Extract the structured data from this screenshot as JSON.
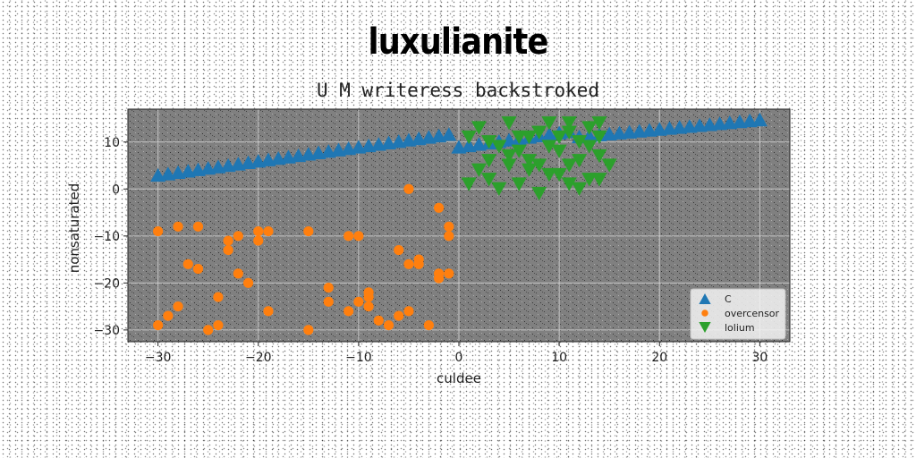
{
  "chart_data": {
    "type": "scatter",
    "title": "luxulianite",
    "subtitle": "U M writeress backstroked",
    "xlabel": "culdee",
    "ylabel": "nonsaturated",
    "xlim": [
      -33,
      33
    ],
    "ylim": [
      -32.5,
      17
    ],
    "xticks": [
      -30,
      -20,
      -10,
      0,
      10,
      20,
      30
    ],
    "yticks": [
      -30,
      -20,
      -10,
      0,
      10
    ],
    "grid": true,
    "plot_background": "#808080",
    "legend_position": "lower-right",
    "series": [
      {
        "name": "C",
        "marker": "triangle-up",
        "color": "#1f77b4",
        "points": [
          [
            -30,
            3
          ],
          [
            -29,
            3.3
          ],
          [
            -28,
            3.6
          ],
          [
            -27,
            3.9
          ],
          [
            -26,
            4.2
          ],
          [
            -25,
            4.5
          ],
          [
            -24,
            4.8
          ],
          [
            -23,
            5.1
          ],
          [
            -22,
            5.4
          ],
          [
            -21,
            5.7
          ],
          [
            -20,
            6
          ],
          [
            -19,
            6.3
          ],
          [
            -18,
            6.6
          ],
          [
            -17,
            6.9
          ],
          [
            -16,
            7.2
          ],
          [
            -15,
            7.5
          ],
          [
            -14,
            7.8
          ],
          [
            -13,
            8.1
          ],
          [
            -12,
            8.4
          ],
          [
            -11,
            8.7
          ],
          [
            -10,
            9
          ],
          [
            -9,
            9.3
          ],
          [
            -8,
            9.6
          ],
          [
            -7,
            9.9
          ],
          [
            -6,
            10.2
          ],
          [
            -5,
            10.5
          ],
          [
            -4,
            10.8
          ],
          [
            -3,
            11.1
          ],
          [
            -2,
            11.4
          ],
          [
            -1,
            11.7
          ],
          [
            0,
            9
          ],
          [
            1,
            9.3
          ],
          [
            2,
            9.6
          ],
          [
            3,
            9.9
          ],
          [
            4,
            10.2
          ],
          [
            5,
            10.5
          ],
          [
            6,
            10.8
          ],
          [
            7,
            11.1
          ],
          [
            8,
            11.4
          ],
          [
            9,
            11.7
          ],
          [
            10,
            12
          ],
          [
            11,
            12.3
          ],
          [
            12,
            11.2
          ],
          [
            13,
            11.4
          ],
          [
            14,
            11.6
          ],
          [
            15,
            11.8
          ],
          [
            16,
            12
          ],
          [
            17,
            12.2
          ],
          [
            18,
            12.4
          ],
          [
            19,
            12.6
          ],
          [
            20,
            12.8
          ],
          [
            21,
            13
          ],
          [
            22,
            13.2
          ],
          [
            23,
            13.4
          ],
          [
            24,
            13.6
          ],
          [
            25,
            13.8
          ],
          [
            26,
            14
          ],
          [
            27,
            14.2
          ],
          [
            28,
            14.4
          ],
          [
            29,
            14.6
          ],
          [
            30,
            14.8
          ]
        ]
      },
      {
        "name": "overcensor",
        "marker": "circle",
        "color": "#ff7f0e",
        "points": [
          [
            -30,
            -9
          ],
          [
            -30,
            -29
          ],
          [
            -29,
            -27
          ],
          [
            -28,
            -8
          ],
          [
            -28,
            -25
          ],
          [
            -27,
            -16
          ],
          [
            -26,
            -8
          ],
          [
            -26,
            -17
          ],
          [
            -25,
            -30
          ],
          [
            -24,
            -23
          ],
          [
            -24,
            -29
          ],
          [
            -23,
            -11
          ],
          [
            -23,
            -13
          ],
          [
            -22,
            -10
          ],
          [
            -22,
            -18
          ],
          [
            -21,
            -20
          ],
          [
            -20,
            -9
          ],
          [
            -20,
            -11
          ],
          [
            -19,
            -9
          ],
          [
            -19,
            -26
          ],
          [
            -15,
            -9
          ],
          [
            -15,
            -30
          ],
          [
            -13,
            -21
          ],
          [
            -13,
            -24
          ],
          [
            -11,
            -10
          ],
          [
            -11,
            -26
          ],
          [
            -10,
            -10
          ],
          [
            -10,
            -24
          ],
          [
            -9,
            -22
          ],
          [
            -9,
            -23
          ],
          [
            -9,
            -25
          ],
          [
            -8,
            -28
          ],
          [
            -7,
            -29
          ],
          [
            -6,
            -13
          ],
          [
            -6,
            -27
          ],
          [
            -5,
            0
          ],
          [
            -5,
            -16
          ],
          [
            -5,
            -26
          ],
          [
            -4,
            -15
          ],
          [
            -4,
            -16
          ],
          [
            -3,
            -29
          ],
          [
            -2,
            -4
          ],
          [
            -2,
            -18
          ],
          [
            -2,
            -19
          ],
          [
            -1,
            -8
          ],
          [
            -1,
            -10
          ],
          [
            -1,
            -18
          ]
        ]
      },
      {
        "name": "lolium",
        "marker": "triangle-down",
        "color": "#2ca02c",
        "points": [
          [
            1,
            11
          ],
          [
            2,
            13
          ],
          [
            3,
            10
          ],
          [
            4,
            9
          ],
          [
            5,
            7
          ],
          [
            5,
            14
          ],
          [
            6,
            8
          ],
          [
            6,
            11
          ],
          [
            7,
            6
          ],
          [
            7,
            11
          ],
          [
            8,
            5
          ],
          [
            8,
            12
          ],
          [
            9,
            14
          ],
          [
            9,
            9
          ],
          [
            10,
            11
          ],
          [
            10,
            8
          ],
          [
            11,
            12
          ],
          [
            11,
            14
          ],
          [
            12,
            10
          ],
          [
            12,
            6
          ],
          [
            13,
            9
          ],
          [
            13,
            13
          ],
          [
            14,
            7
          ],
          [
            14,
            14
          ],
          [
            15,
            5
          ],
          [
            2,
            4
          ],
          [
            3,
            2
          ],
          [
            4,
            0
          ],
          [
            1,
            1
          ],
          [
            6,
            1
          ],
          [
            8,
            -1
          ],
          [
            10,
            3
          ],
          [
            11,
            1
          ],
          [
            12,
            0
          ],
          [
            14,
            2
          ],
          [
            13,
            2
          ],
          [
            7,
            4
          ],
          [
            5,
            5
          ],
          [
            3,
            6
          ],
          [
            9,
            3
          ],
          [
            11,
            5
          ],
          [
            14,
            11
          ]
        ]
      }
    ]
  }
}
